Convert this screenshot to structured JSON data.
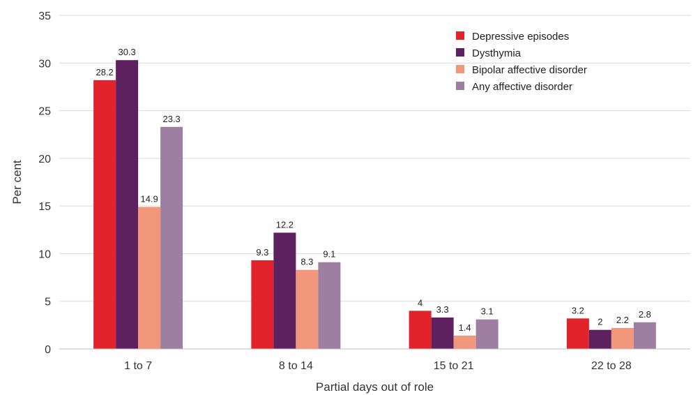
{
  "chart_data": {
    "type": "bar",
    "xlabel": "Partial days out of role",
    "ylabel": "Per cent",
    "ylim": [
      0,
      35
    ],
    "yticks": [
      0,
      5,
      10,
      15,
      20,
      25,
      30,
      35
    ],
    "grid": true,
    "legend_position": "top-right",
    "categories": [
      "1 to 7",
      "8 to 14",
      "15 to 21",
      "22 to 28"
    ],
    "series": [
      {
        "name": "Depressive episodes",
        "color": "#e3232b",
        "values": [
          28.2,
          9.3,
          4,
          3.2
        ]
      },
      {
        "name": "Dysthymia",
        "color": "#5e2160",
        "values": [
          30.3,
          12.2,
          3.3,
          2
        ]
      },
      {
        "name": "Bipolar affective disorder",
        "color": "#f1977c",
        "values": [
          14.9,
          8.3,
          1.4,
          2.2
        ]
      },
      {
        "name": "Any affective disorder",
        "color": "#9e7fa2",
        "values": [
          23.3,
          9.1,
          3.1,
          2.8
        ]
      }
    ]
  }
}
